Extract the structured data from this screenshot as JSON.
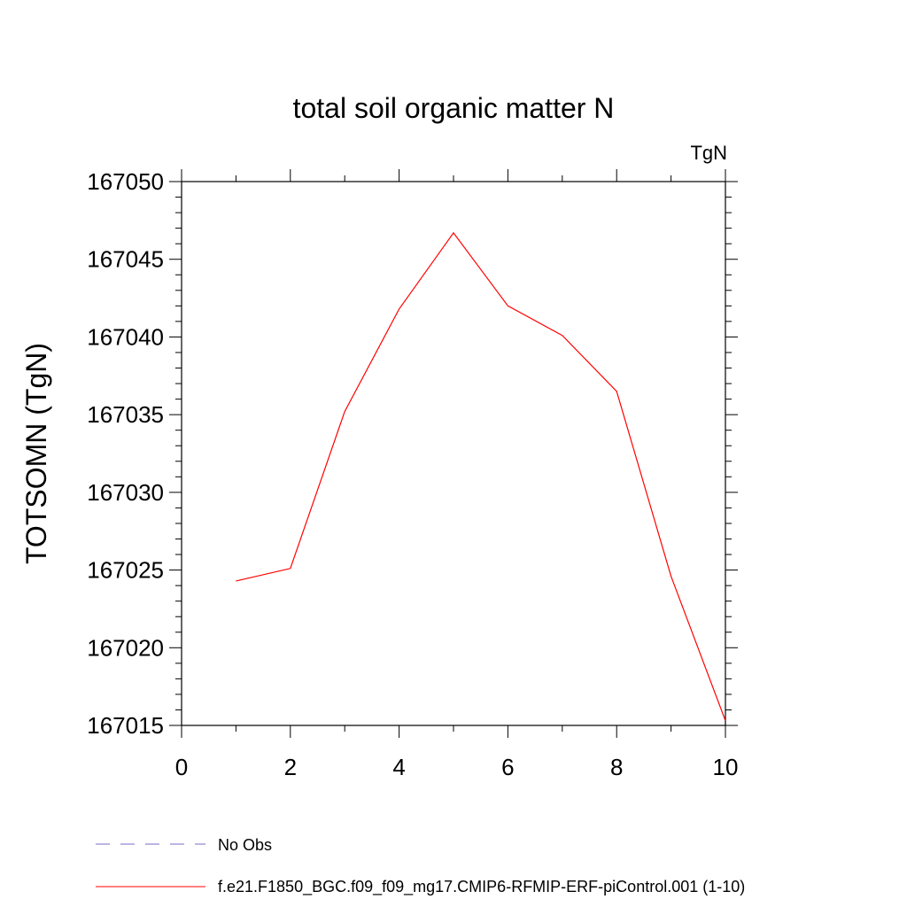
{
  "chart_data": {
    "type": "line",
    "title": "total soil organic matter N",
    "units_label": "TgN",
    "ylabel": "TOTSOMN  (TgN)",
    "xlabel": "",
    "xlim": [
      0,
      10
    ],
    "ylim": [
      167015,
      167050
    ],
    "x_ticks": [
      0,
      2,
      4,
      6,
      8,
      10
    ],
    "y_ticks": [
      167015,
      167020,
      167025,
      167030,
      167035,
      167040,
      167045,
      167050
    ],
    "grid": false,
    "legend_position": "bottom-left",
    "series": [
      {
        "name": "f.e21.F1850_BGC.f09_f09_mg17.CMIP6-RFMIP-ERF-piControl.001 (1-10)",
        "color": "#ff0000",
        "style": "solid",
        "x": [
          1,
          2,
          3,
          4,
          5,
          6,
          7,
          8,
          9,
          10
        ],
        "y": [
          167024.3,
          167025.1,
          167035.2,
          167041.8,
          167046.7,
          167042.0,
          167040.1,
          167036.5,
          167024.6,
          167015.3
        ]
      }
    ],
    "legend": [
      {
        "label": "No Obs",
        "color": "#7b68c8",
        "style": "dashed"
      },
      {
        "label": "f.e21.F1850_BGC.f09_f09_mg17.CMIP6-RFMIP-ERF-piControl.001 (1-10)",
        "color": "#ff0000",
        "style": "solid"
      }
    ]
  }
}
